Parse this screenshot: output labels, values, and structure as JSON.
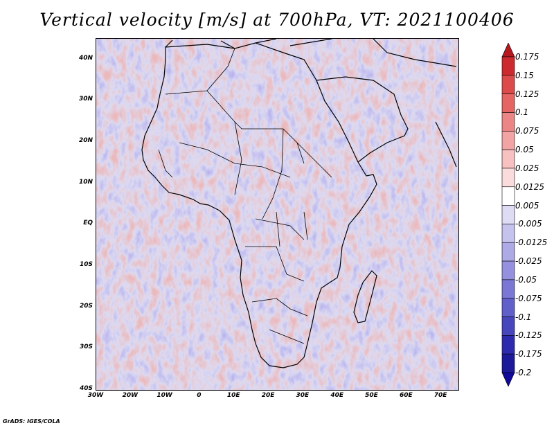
{
  "title": "Vertical velocity [m/s] at 700hPa, VT: 2021100406",
  "credit": "GrADS: IGES/COLA",
  "lat_labels": [
    "40N",
    "30N",
    "20N",
    "10N",
    "EQ",
    "10S",
    "20S",
    "30S",
    "40S"
  ],
  "lat_values": [
    40,
    30,
    20,
    10,
    0,
    -10,
    -20,
    -30,
    -40
  ],
  "lon_labels": [
    "30W",
    "20W",
    "10W",
    "0",
    "10E",
    "20E",
    "30E",
    "40E",
    "50E",
    "60E",
    "70E"
  ],
  "lon_values": [
    -30,
    -20,
    -10,
    0,
    10,
    20,
    30,
    40,
    50,
    60,
    70
  ],
  "extent": {
    "lon": [
      -30,
      75
    ],
    "lat": [
      -40,
      45
    ]
  },
  "colorbar": {
    "labels": [
      "0.175",
      "0.15",
      "0.125",
      "0.1",
      "0.075",
      "0.05",
      "0.025",
      "0.0125",
      "0.005",
      "-0.005",
      "-0.0125",
      "-0.025",
      "-0.05",
      "-0.075",
      "-0.1",
      "-0.125",
      "-0.175",
      "-0.2"
    ],
    "colors": [
      "#b3191e",
      "#cc2a2e",
      "#dc4a4a",
      "#e56565",
      "#ec8585",
      "#f2a3a3",
      "#f7c1c1",
      "#fbdcdc",
      "#ffffff",
      "#dedcf5",
      "#c6c2ee",
      "#aeaae6",
      "#9591de",
      "#7b77d4",
      "#6160cb",
      "#4746bd",
      "#2d2aad",
      "#1d1a9a",
      "#10099a"
    ]
  }
}
